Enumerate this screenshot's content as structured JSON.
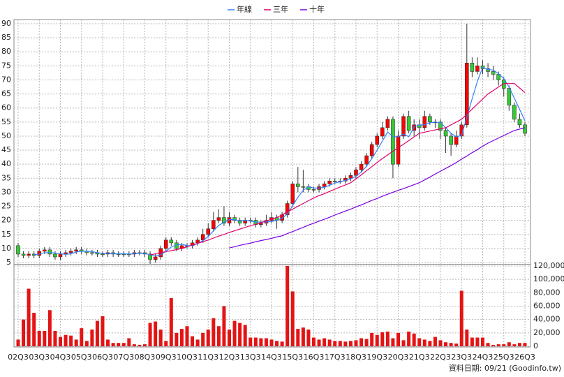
{
  "chart_data": {
    "type": "candlestick",
    "categories": [
      "02Q3",
      null,
      null,
      null,
      "03Q3",
      null,
      null,
      null,
      "04Q3",
      null,
      null,
      null,
      "05Q3",
      null,
      null,
      null,
      "06Q3",
      null,
      null,
      null,
      "07Q3",
      null,
      null,
      null,
      "08Q3",
      null,
      null,
      null,
      "09Q3",
      null,
      null,
      null,
      "10Q3",
      null,
      null,
      null,
      "11Q3",
      null,
      null,
      null,
      "12Q3",
      null,
      null,
      null,
      "13Q3",
      null,
      null,
      null,
      "14Q3",
      null,
      null,
      null,
      "15Q3",
      null,
      null,
      null,
      "16Q3",
      null,
      null,
      null,
      "17Q3",
      null,
      null,
      null,
      "18Q3",
      null,
      null,
      null,
      "19Q3",
      null,
      null,
      null,
      "20Q3",
      null,
      null,
      null,
      "21Q3",
      null,
      null,
      null,
      "22Q3",
      null,
      null,
      null,
      "23Q3",
      null,
      null,
      null,
      "24Q3",
      null,
      null,
      null,
      "25Q3",
      null,
      null,
      null,
      "26Q3"
    ],
    "open": [
      11,
      8,
      7.5,
      8,
      7.5,
      9,
      9.5,
      8,
      7,
      8,
      8.5,
      9,
      9.5,
      9,
      8.5,
      8.5,
      8,
      8,
      8.5,
      8,
      8,
      8,
      8,
      8.5,
      8.5,
      8,
      6,
      7,
      10,
      13,
      12,
      10,
      11,
      11,
      12,
      13,
      15,
      17,
      20,
      21,
      19,
      21,
      20,
      19,
      20,
      20,
      18.5,
      19,
      20,
      21,
      20,
      22,
      26,
      33,
      32,
      32,
      31,
      31,
      32,
      33,
      34,
      34,
      34,
      35,
      36,
      38,
      40,
      43,
      47,
      50,
      53,
      56,
      40,
      50,
      57,
      52,
      54,
      53,
      57,
      55,
      55,
      52,
      50,
      47,
      50,
      54,
      76,
      73,
      75,
      74,
      73,
      72,
      70,
      67,
      61,
      56,
      54
    ],
    "high": [
      12,
      9,
      9,
      9,
      10,
      10.5,
      10.5,
      9,
      9,
      9.5,
      10,
      10.5,
      10.5,
      10,
      9.5,
      9.5,
      9,
      9.5,
      9.5,
      9,
      9,
      9,
      9.5,
      9.5,
      9.5,
      9,
      8,
      11,
      14,
      14,
      13,
      12,
      12,
      13,
      14,
      17,
      19,
      23,
      24,
      25,
      23,
      22,
      21,
      21,
      21,
      21,
      20,
      22,
      23,
      22,
      23,
      27,
      34,
      39,
      38,
      33,
      32,
      33,
      34,
      35,
      35,
      35,
      36,
      37,
      39,
      41,
      44,
      48,
      51,
      55,
      57,
      57,
      52,
      58,
      59,
      56,
      56,
      59,
      58,
      56,
      56,
      53,
      51,
      52,
      55,
      90,
      78,
      78,
      77,
      76,
      75,
      73,
      71,
      68,
      62,
      58,
      55
    ],
    "low": [
      7,
      6.5,
      6.5,
      6.5,
      6.5,
      8,
      7,
      6,
      6,
      7,
      7.5,
      8,
      8,
      7.5,
      7.5,
      7,
      7,
      7,
      7,
      7,
      7,
      7,
      7,
      7.5,
      7,
      4.5,
      5,
      6,
      9,
      11,
      9,
      9,
      10,
      10,
      11,
      12,
      14,
      16,
      19,
      18,
      18,
      19,
      18,
      18,
      19,
      17.5,
      17.5,
      18,
      19,
      17,
      19,
      21,
      25,
      30,
      30,
      30,
      30,
      30,
      31,
      32,
      33,
      33,
      33,
      34,
      35,
      37,
      39,
      42,
      46,
      49,
      52,
      35,
      39,
      49,
      51,
      50,
      49,
      52,
      54,
      53,
      49,
      44,
      43,
      46,
      49,
      53,
      71,
      72,
      72,
      71,
      70,
      68,
      64,
      59,
      55,
      53,
      50
    ],
    "close": [
      8,
      7.5,
      8,
      7.5,
      9,
      9.5,
      8,
      7,
      8,
      8.5,
      9,
      9.5,
      9,
      8.5,
      8.5,
      8,
      8,
      8.5,
      8,
      8,
      8,
      8,
      8.5,
      8.5,
      8,
      6,
      7,
      10,
      13,
      12,
      10,
      11,
      11,
      12,
      13,
      15,
      17,
      20,
      21,
      19,
      21,
      20,
      19,
      20,
      20,
      18.5,
      19,
      20,
      21,
      20,
      22,
      26,
      33,
      32,
      32,
      31,
      31,
      32,
      33,
      34,
      34,
      34,
      35,
      36,
      38,
      40,
      43,
      47,
      50,
      53,
      56,
      40,
      50,
      57,
      52,
      54,
      53,
      57,
      55,
      55,
      52,
      50,
      47,
      50,
      54,
      76,
      73,
      75,
      74,
      73,
      72,
      70,
      67,
      61,
      56,
      54,
      51
    ],
    "up_color": "#ff0000",
    "down_color": "#33cc33",
    "series": [
      {
        "name": "年線",
        "color": "#2f7fff",
        "values": [
          null,
          null,
          null,
          7.75,
          8,
          8.5,
          8.5,
          8.4,
          8.1,
          7.9,
          8.1,
          8.75,
          9,
          9,
          8.9,
          8.5,
          8.25,
          8.25,
          8.1,
          8.1,
          8.1,
          8,
          8.1,
          8.25,
          8.25,
          7.75,
          7.4,
          7.75,
          9,
          10.5,
          11.25,
          11.5,
          11,
          11,
          11.75,
          12.75,
          14.25,
          16.25,
          18.25,
          19.25,
          20.25,
          20.25,
          19.75,
          20,
          19.75,
          19.4,
          19.4,
          19.4,
          19.6,
          20,
          20.75,
          22.25,
          25.25,
          28.25,
          30.75,
          32,
          31.5,
          31.5,
          31.75,
          32.5,
          33.25,
          33.75,
          34.25,
          34.75,
          35.75,
          37.25,
          39.25,
          42,
          45,
          48.25,
          51.5,
          49.75,
          49.75,
          50.75,
          49.75,
          53.25,
          54,
          54,
          54.75,
          55,
          54.75,
          53,
          51,
          49.75,
          50.25,
          56.75,
          63.25,
          69.5,
          74.5,
          73.75,
          73.5,
          72.25,
          70.5,
          67.5,
          63.5,
          59.5,
          55.5
        ]
      },
      {
        "name": "三年",
        "color": "#e0006a",
        "values": [
          null,
          null,
          null,
          null,
          null,
          null,
          null,
          null,
          null,
          null,
          null,
          null,
          null,
          null,
          null,
          null,
          null,
          null,
          null,
          null,
          null,
          null,
          null,
          null,
          null,
          7.7,
          8.1,
          8.5,
          8.9,
          9.2,
          9.6,
          10,
          10.6,
          11.2,
          11.8,
          12.4,
          13,
          13.7,
          14.4,
          15,
          15.7,
          16.3,
          16.9,
          17.5,
          18.1,
          18.6,
          19.2,
          19.8,
          20.4,
          21,
          22,
          23,
          24,
          25,
          26,
          27,
          28,
          28.8,
          29.5,
          30.3,
          31.1,
          31.9,
          32.6,
          33.4,
          34.8,
          36.2,
          37.7,
          39.1,
          40.6,
          42,
          43.3,
          44.6,
          45.9,
          47.1,
          48.4,
          49.7,
          51,
          51.4,
          51.8,
          52.2,
          52.6,
          53,
          54,
          55,
          56,
          57.8,
          59.6,
          61.4,
          63.2,
          65,
          66.2,
          67.5,
          68.7,
          68.7,
          68.7,
          67.1,
          65.5
        ]
      },
      {
        "name": "十年",
        "color": "#7a00e0",
        "values": [
          null,
          null,
          null,
          null,
          null,
          null,
          null,
          null,
          null,
          null,
          null,
          null,
          null,
          null,
          null,
          null,
          null,
          null,
          null,
          null,
          null,
          null,
          null,
          null,
          null,
          null,
          null,
          null,
          null,
          null,
          null,
          null,
          null,
          null,
          null,
          null,
          null,
          null,
          null,
          null,
          10.2,
          10.6,
          11.1,
          11.5,
          11.9,
          12.4,
          12.8,
          13.2,
          13.6,
          14.1,
          14.5,
          15.3,
          16,
          16.8,
          17.5,
          18.3,
          19,
          19.7,
          20.4,
          21.1,
          21.9,
          22.6,
          23.3,
          24,
          24.8,
          25.5,
          26.3,
          27.1,
          27.8,
          28.6,
          29.3,
          30,
          30.7,
          31.3,
          32,
          32.7,
          33.4,
          34.4,
          35.4,
          36.5,
          37.5,
          38.5,
          39.5,
          40.6,
          41.8,
          42.9,
          44.1,
          45.2,
          46.4,
          47.5,
          48.4,
          49.3,
          50.2,
          51.1,
          52,
          52.5,
          53
        ]
      }
    ],
    "ylim": [
      5,
      90
    ],
    "yticks": [
      5,
      10,
      15,
      20,
      25,
      30,
      35,
      40,
      45,
      50,
      55,
      60,
      65,
      70,
      75,
      80,
      85,
      90
    ],
    "grid": true,
    "legend": "top",
    "volume": {
      "type": "bar",
      "color": "#e31414",
      "values": [
        10000,
        40000,
        86000,
        50000,
        23000,
        23000,
        54000,
        23000,
        14000,
        17000,
        16000,
        10000,
        27000,
        8000,
        25000,
        38000,
        45000,
        10000,
        5000,
        5000,
        5000,
        12000,
        3000,
        2000,
        3000,
        35000,
        37000,
        25000,
        8000,
        72000,
        20000,
        26000,
        30000,
        15000,
        10000,
        20000,
        25000,
        42000,
        30000,
        60000,
        25000,
        38000,
        35000,
        32000,
        13000,
        13000,
        12000,
        12000,
        10000,
        8000,
        7000,
        120000,
        82000,
        26000,
        28000,
        25000,
        13000,
        10000,
        12000,
        10000,
        8000,
        8000,
        7000,
        8000,
        9000,
        12000,
        11000,
        20000,
        17000,
        21000,
        22000,
        12000,
        20000,
        9000,
        22000,
        19000,
        12000,
        10000,
        8000,
        14000,
        9000,
        6000,
        5000,
        4000,
        83000,
        25000,
        13000,
        13000,
        13000,
        5000,
        2000,
        3000,
        3000,
        6000,
        3000,
        5000,
        5000
      ],
      "y2lim": [
        0,
        120000
      ],
      "y2ticks": [
        0,
        {
          "value": 20000,
          "label": "20,000"
        },
        {
          "value": 40000,
          "label": "40,000"
        },
        {
          "value": 60000,
          "label": "60,000"
        },
        {
          "value": 80000,
          "label": "80,000"
        },
        {
          "value": 100000,
          "label": "100,000"
        },
        {
          "value": 120000,
          "label": "120,000"
        }
      ]
    },
    "source": "資料日期: 09/21  (Goodinfo.tw)"
  }
}
